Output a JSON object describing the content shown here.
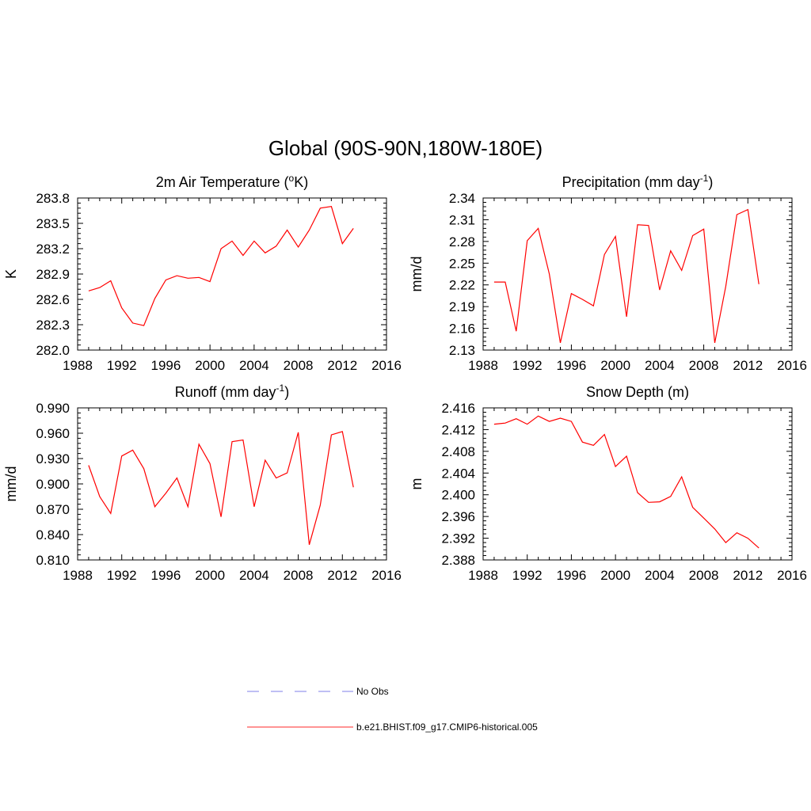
{
  "figure": {
    "title": "Global (90S-90N,180W-180E)"
  },
  "legend": {
    "entries": [
      {
        "label": "No Obs",
        "color": "#9999ee",
        "style": "dashed"
      },
      {
        "label": "b.e21.BHIST.f09_g17.CMIP6-historical.005",
        "color": "#ff5555",
        "style": "solid"
      }
    ]
  },
  "chart_data": [
    {
      "type": "line",
      "title": "2m Air Temperature (",
      "title_sup": "o",
      "title_tail": "K)",
      "xlabel": "",
      "ylabel": "K",
      "xlim": [
        1988,
        2016
      ],
      "ylim": [
        282.0,
        283.8
      ],
      "xticks": [
        "1988",
        "1992",
        "1996",
        "2000",
        "2004",
        "2008",
        "2012",
        "2016"
      ],
      "yticks": [
        "282.0",
        "282.3",
        "282.6",
        "282.9",
        "283.2",
        "283.5",
        "283.8"
      ],
      "x": [
        1989,
        1990,
        1991,
        1992,
        1993,
        1994,
        1995,
        1996,
        1997,
        1998,
        1999,
        2000,
        2001,
        2002,
        2003,
        2004,
        2005,
        2006,
        2007,
        2008,
        2009,
        2010,
        2011,
        2012,
        2013
      ],
      "series": [
        {
          "name": "b.e21.BHIST.f09_g17.CMIP6-historical.005",
          "color": "#ff0000",
          "values": [
            282.7,
            282.74,
            282.82,
            282.5,
            282.32,
            282.29,
            282.61,
            282.83,
            282.88,
            282.85,
            282.86,
            282.81,
            283.2,
            283.29,
            283.12,
            283.29,
            283.15,
            283.23,
            283.42,
            283.22,
            283.42,
            283.68,
            283.7,
            283.26,
            283.44
          ]
        }
      ]
    },
    {
      "type": "line",
      "title": "Precipitation (mm day",
      "title_sup": "-1",
      "title_tail": ")",
      "xlabel": "",
      "ylabel": "mm/d",
      "xlim": [
        1988,
        2016
      ],
      "ylim": [
        2.13,
        2.34
      ],
      "xticks": [
        "1988",
        "1992",
        "1996",
        "2000",
        "2004",
        "2008",
        "2012",
        "2016"
      ],
      "yticks": [
        "2.13",
        "2.16",
        "2.19",
        "2.22",
        "2.25",
        "2.28",
        "2.31",
        "2.34"
      ],
      "x": [
        1989,
        1990,
        1991,
        1992,
        1993,
        1994,
        1995,
        1996,
        1997,
        1998,
        1999,
        2000,
        2001,
        2002,
        2003,
        2004,
        2005,
        2006,
        2007,
        2008,
        2009,
        2010,
        2011,
        2012,
        2013
      ],
      "series": [
        {
          "name": "b.e21.BHIST.f09_g17.CMIP6-historical.005",
          "color": "#ff0000",
          "values": [
            2.224,
            2.224,
            2.156,
            2.281,
            2.298,
            2.235,
            2.14,
            2.208,
            2.2,
            2.191,
            2.262,
            2.287,
            2.176,
            2.303,
            2.302,
            2.213,
            2.267,
            2.24,
            2.288,
            2.297,
            2.14,
            2.218,
            2.317,
            2.324,
            2.221
          ]
        }
      ]
    },
    {
      "type": "line",
      "title": "Runoff (mm day",
      "title_sup": "-1",
      "title_tail": ")",
      "xlabel": "",
      "ylabel": "mm/d",
      "xlim": [
        1988,
        2016
      ],
      "ylim": [
        0.81,
        0.99
      ],
      "xticks": [
        "1988",
        "1992",
        "1996",
        "2000",
        "2004",
        "2008",
        "2012",
        "2016"
      ],
      "yticks": [
        "0.810",
        "0.840",
        "0.870",
        "0.900",
        "0.930",
        "0.960",
        "0.990"
      ],
      "x": [
        1989,
        1990,
        1991,
        1992,
        1993,
        1994,
        1995,
        1996,
        1997,
        1998,
        1999,
        2000,
        2001,
        2002,
        2003,
        2004,
        2005,
        2006,
        2007,
        2008,
        2009,
        2010,
        2011,
        2012,
        2013
      ],
      "series": [
        {
          "name": "b.e21.BHIST.f09_g17.CMIP6-historical.005",
          "color": "#ff0000",
          "values": [
            0.922,
            0.885,
            0.865,
            0.933,
            0.94,
            0.918,
            0.873,
            0.889,
            0.907,
            0.873,
            0.947,
            0.924,
            0.861,
            0.95,
            0.952,
            0.873,
            0.928,
            0.907,
            0.913,
            0.961,
            0.828,
            0.875,
            0.958,
            0.962,
            0.896
          ]
        }
      ]
    },
    {
      "type": "line",
      "title": "Snow Depth (m)",
      "title_sup": "",
      "title_tail": "",
      "xlabel": "",
      "ylabel": "m",
      "xlim": [
        1988,
        2016
      ],
      "ylim": [
        2.388,
        2.416
      ],
      "xticks": [
        "1988",
        "1992",
        "1996",
        "2000",
        "2004",
        "2008",
        "2012",
        "2016"
      ],
      "yticks": [
        "2.388",
        "2.392",
        "2.396",
        "2.400",
        "2.404",
        "2.408",
        "2.412",
        "2.416"
      ],
      "x": [
        1989,
        1990,
        1991,
        1992,
        1993,
        1994,
        1995,
        1996,
        1997,
        1998,
        1999,
        2000,
        2001,
        2002,
        2003,
        2004,
        2005,
        2006,
        2007,
        2008,
        2009,
        2010,
        2011,
        2012,
        2013
      ],
      "series": [
        {
          "name": "b.e21.BHIST.f09_g17.CMIP6-historical.005",
          "color": "#ff0000",
          "values": [
            2.413,
            2.4132,
            2.414,
            2.413,
            2.4145,
            2.4135,
            2.4141,
            2.4135,
            2.4097,
            2.4091,
            2.4111,
            2.4052,
            2.4071,
            2.4004,
            2.3986,
            2.3987,
            2.3997,
            2.4033,
            2.3977,
            2.3957,
            2.3937,
            2.3912,
            2.393,
            2.392,
            2.3902
          ]
        }
      ]
    }
  ]
}
